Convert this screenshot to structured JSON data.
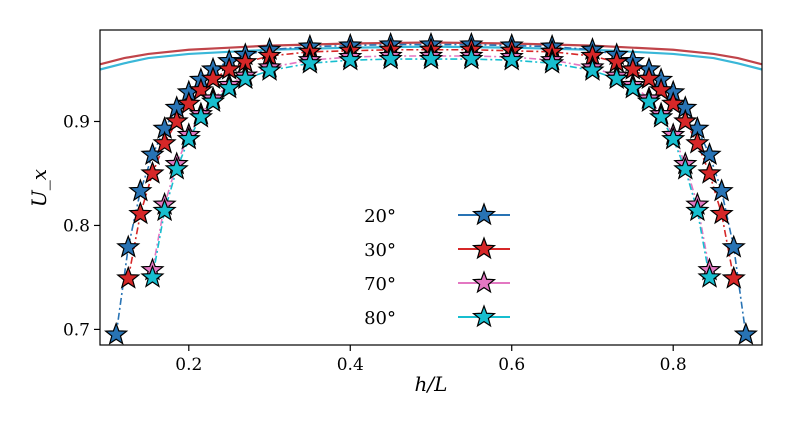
{
  "chart_data": {
    "type": "line",
    "xlabel": "h/L",
    "ylabel": "U_x",
    "xlim": [
      0.09,
      0.91
    ],
    "ylim": [
      0.685,
      0.988
    ],
    "xticks": [
      0.2,
      0.4,
      0.6,
      0.8
    ],
    "xtick_labels": [
      "0.2",
      "0.4",
      "0.6",
      "0.8"
    ],
    "yticks": [
      0.7,
      0.8,
      0.9
    ],
    "ytick_labels": [
      "0.7",
      "0.8",
      "0.9"
    ],
    "legend_position": "center",
    "series": [
      {
        "name": "20°",
        "color": "#2873b4",
        "marker": "star",
        "x": [
          0.11,
          0.125,
          0.14,
          0.155,
          0.17,
          0.185,
          0.2,
          0.215,
          0.23,
          0.25,
          0.27,
          0.3,
          0.35,
          0.4,
          0.45,
          0.5,
          0.55,
          0.6,
          0.65,
          0.7,
          0.73,
          0.75,
          0.77,
          0.785,
          0.8,
          0.815,
          0.83,
          0.845,
          0.86,
          0.875,
          0.89
        ],
        "values": [
          0.695,
          0.779,
          0.833,
          0.868,
          0.893,
          0.913,
          0.928,
          0.94,
          0.95,
          0.958,
          0.964,
          0.969,
          0.972,
          0.973,
          0.974,
          0.974,
          0.974,
          0.973,
          0.972,
          0.969,
          0.964,
          0.958,
          0.95,
          0.94,
          0.928,
          0.913,
          0.893,
          0.868,
          0.833,
          0.779,
          0.695
        ]
      },
      {
        "name": "30°",
        "color": "#d62728",
        "marker": "star",
        "x": [
          0.125,
          0.14,
          0.155,
          0.17,
          0.185,
          0.2,
          0.215,
          0.23,
          0.25,
          0.27,
          0.3,
          0.35,
          0.4,
          0.45,
          0.5,
          0.55,
          0.6,
          0.65,
          0.7,
          0.73,
          0.75,
          0.77,
          0.785,
          0.8,
          0.815,
          0.83,
          0.845,
          0.86,
          0.875
        ],
        "values": [
          0.749,
          0.811,
          0.85,
          0.879,
          0.9,
          0.917,
          0.93,
          0.941,
          0.95,
          0.957,
          0.963,
          0.967,
          0.968,
          0.969,
          0.969,
          0.969,
          0.968,
          0.967,
          0.963,
          0.957,
          0.95,
          0.941,
          0.93,
          0.917,
          0.9,
          0.879,
          0.85,
          0.811,
          0.749
        ]
      },
      {
        "name": "70°",
        "color": "#e377c2",
        "marker": "star",
        "x": [
          0.155,
          0.17,
          0.185,
          0.2,
          0.215,
          0.23,
          0.25,
          0.27,
          0.3,
          0.35,
          0.4,
          0.45,
          0.5,
          0.55,
          0.6,
          0.65,
          0.7,
          0.73,
          0.75,
          0.77,
          0.785,
          0.8,
          0.815,
          0.83,
          0.845
        ],
        "values": [
          0.757,
          0.82,
          0.859,
          0.887,
          0.907,
          0.922,
          0.935,
          0.944,
          0.952,
          0.959,
          0.962,
          0.963,
          0.963,
          0.963,
          0.962,
          0.959,
          0.952,
          0.944,
          0.935,
          0.922,
          0.907,
          0.887,
          0.859,
          0.82,
          0.757
        ]
      },
      {
        "name": "80°",
        "color": "#17becf",
        "marker": "star",
        "x": [
          0.155,
          0.17,
          0.185,
          0.2,
          0.215,
          0.23,
          0.25,
          0.27,
          0.3,
          0.35,
          0.4,
          0.45,
          0.5,
          0.55,
          0.6,
          0.65,
          0.7,
          0.73,
          0.75,
          0.77,
          0.785,
          0.8,
          0.815,
          0.83,
          0.845
        ],
        "values": [
          0.75,
          0.814,
          0.854,
          0.883,
          0.904,
          0.919,
          0.932,
          0.941,
          0.949,
          0.956,
          0.959,
          0.96,
          0.96,
          0.96,
          0.959,
          0.956,
          0.949,
          0.941,
          0.932,
          0.919,
          0.904,
          0.883,
          0.854,
          0.814,
          0.75
        ]
      }
    ],
    "reference_lines": [
      {
        "color": "#c0444a",
        "x": [
          0.09,
          0.12,
          0.15,
          0.2,
          0.25,
          0.3,
          0.4,
          0.5,
          0.6,
          0.7,
          0.75,
          0.8,
          0.85,
          0.88,
          0.91
        ],
        "values": [
          0.955,
          0.961,
          0.965,
          0.969,
          0.971,
          0.973,
          0.975,
          0.976,
          0.975,
          0.973,
          0.971,
          0.969,
          0.965,
          0.961,
          0.955
        ]
      },
      {
        "color": "#3ab7d8",
        "x": [
          0.09,
          0.12,
          0.15,
          0.2,
          0.25,
          0.3,
          0.4,
          0.5,
          0.6,
          0.7,
          0.75,
          0.8,
          0.85,
          0.88,
          0.91
        ],
        "values": [
          0.95,
          0.956,
          0.961,
          0.965,
          0.967,
          0.969,
          0.971,
          0.972,
          0.971,
          0.969,
          0.967,
          0.965,
          0.961,
          0.956,
          0.95
        ]
      }
    ]
  }
}
